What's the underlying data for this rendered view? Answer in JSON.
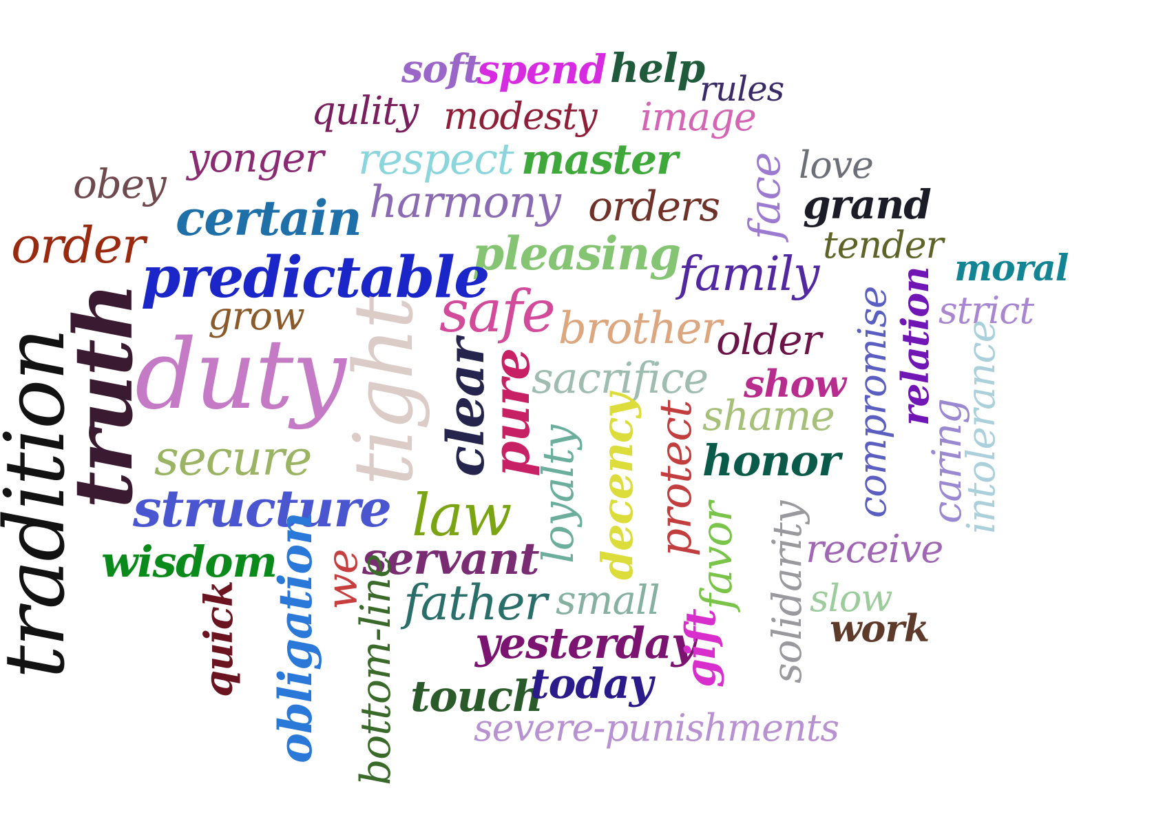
{
  "words": [
    {
      "text": "soft",
      "color": "#9a67c9"
    },
    {
      "text": "spend",
      "color": "#d62be0"
    },
    {
      "text": "help",
      "color": "#1f5a3a"
    },
    {
      "text": "rules",
      "color": "#3b2a68"
    },
    {
      "text": "qulity",
      "color": "#7a1f5e"
    },
    {
      "text": "modesty",
      "color": "#8e1f38"
    },
    {
      "text": "image",
      "color": "#d465b4"
    },
    {
      "text": "yonger",
      "color": "#8a2a72"
    },
    {
      "text": "respect",
      "color": "#8ad6dc"
    },
    {
      "text": "master",
      "color": "#3ea83a"
    },
    {
      "text": "face",
      "color": "#9c7ad0"
    },
    {
      "text": "love",
      "color": "#6c6e78"
    },
    {
      "text": "obey",
      "color": "#6e4a4e"
    },
    {
      "text": "certain",
      "color": "#1f6fa8"
    },
    {
      "text": "harmony",
      "color": "#8a6ab0"
    },
    {
      "text": "orders",
      "color": "#6e3228"
    },
    {
      "text": "grand",
      "color": "#1c1c28"
    },
    {
      "text": "order",
      "color": "#992a10"
    },
    {
      "text": "pleasing",
      "color": "#84c472"
    },
    {
      "text": "tender",
      "color": "#5e6428"
    },
    {
      "text": "moral",
      "color": "#138494"
    },
    {
      "text": "predictable",
      "color": "#1a26c8"
    },
    {
      "text": "family",
      "color": "#5228a0"
    },
    {
      "text": "strict",
      "color": "#a886d0"
    },
    {
      "text": "safe",
      "color": "#d24a9a"
    },
    {
      "text": "grow",
      "color": "#8a5a2a"
    },
    {
      "text": "brother",
      "color": "#dca67e"
    },
    {
      "text": "older",
      "color": "#6a1448"
    },
    {
      "text": "compromise",
      "color": "#5a5ec0"
    },
    {
      "text": "relation",
      "color": "#7016b4"
    },
    {
      "text": "duty",
      "color": "#c47ac4"
    },
    {
      "text": "tight",
      "color": "#dcccc8"
    },
    {
      "text": "truth",
      "color": "#3a1a30"
    },
    {
      "text": "tradition",
      "color": "#121212"
    },
    {
      "text": "sacrifice",
      "color": "#9ebcb0"
    },
    {
      "text": "show",
      "color": "#b82c8e"
    },
    {
      "text": "clear",
      "color": "#24244c"
    },
    {
      "text": "pure",
      "color": "#c82064"
    },
    {
      "text": "shame",
      "color": "#a6c07a"
    },
    {
      "text": "caring",
      "color": "#9a88d0"
    },
    {
      "text": "intolerance",
      "color": "#aad0dc"
    },
    {
      "text": "secure",
      "color": "#9ab464"
    },
    {
      "text": "loyalty",
      "color": "#6cae9c"
    },
    {
      "text": "decency",
      "color": "#dcdc3a"
    },
    {
      "text": "protect",
      "color": "#c23e3e"
    },
    {
      "text": "honor",
      "color": "#0a5a4a"
    },
    {
      "text": "structure",
      "color": "#4a56d0"
    },
    {
      "text": "law",
      "color": "#7aa412"
    },
    {
      "text": "favor",
      "color": "#7ac44a"
    },
    {
      "text": "solidarity",
      "color": "#9a9a9e"
    },
    {
      "text": "receive",
      "color": "#a068b4"
    },
    {
      "text": "wisdom",
      "color": "#0a8a1a"
    },
    {
      "text": "we",
      "color": "#c83e3e"
    },
    {
      "text": "servant",
      "color": "#7a2c72"
    },
    {
      "text": "obligation",
      "color": "#2a78d8"
    },
    {
      "text": "quick",
      "color": "#6a1420"
    },
    {
      "text": "bottom-line",
      "color": "#3a6a2a"
    },
    {
      "text": "father",
      "color": "#2a6e6a"
    },
    {
      "text": "small",
      "color": "#86b0a0"
    },
    {
      "text": "slow",
      "color": "#9ccc9c"
    },
    {
      "text": "gift",
      "color": "#d82ecc"
    },
    {
      "text": "work",
      "color": "#5e3a2a"
    },
    {
      "text": "yesterday",
      "color": "#7a1470"
    },
    {
      "text": "touch",
      "color": "#2a5a2a"
    },
    {
      "text": "today",
      "color": "#2a1a8a"
    },
    {
      "text": "severe-punishments",
      "color": "#b892d0"
    }
  ]
}
